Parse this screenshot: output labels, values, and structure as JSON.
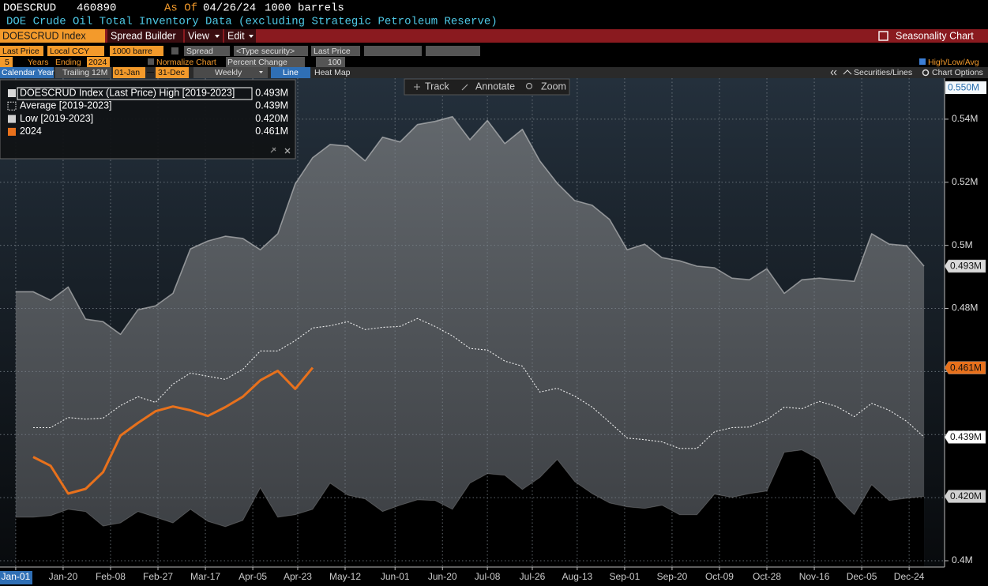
{
  "ui": {
    "symbol": "DOESCRUD",
    "code": "460890",
    "as_of_label": "As Of",
    "as_of": "04/26/24",
    "units": "1000 barrels",
    "description": "DOE Crude Oil Total Inventory Data (excluding Strategic Petroleum Reserve)",
    "menu": [
      "DOESCRUD Index",
      "Spread Builder",
      "View",
      "Edit"
    ],
    "function": "Seasonality Chart",
    "controls_1": [
      "Last Price",
      "Local CCY",
      "1000 barre",
      "Spread",
      "<Type security>",
      "Last Price"
    ],
    "controls_2": [
      "5",
      "Years",
      "Ending",
      "2024",
      "Normalize Chart",
      "Percent Change",
      "100",
      "High/Low/Avg"
    ],
    "controls_3": [
      "Calendar Year",
      "Trailing 12M",
      "01-Jan",
      "31-Dec",
      "Weekly",
      "Line",
      "Heat Map",
      "Securities/Lines",
      "Chart Options"
    ],
    "chart_tools": [
      "Track",
      "Annotate",
      "Zoom"
    ]
  },
  "chart_data": {
    "type": "line",
    "x": [
      0,
      7,
      14,
      21,
      28,
      35,
      42,
      49,
      56,
      63,
      70,
      77,
      84,
      91,
      98,
      105,
      112,
      119,
      126,
      133,
      140,
      147,
      154,
      161,
      168,
      175,
      182,
      189,
      196,
      203,
      210,
      217,
      224,
      231,
      238,
      245,
      252,
      259,
      266,
      273,
      280,
      287,
      294,
      301,
      308,
      315,
      322,
      329,
      336,
      343,
      350,
      357,
      364
    ],
    "xlim": [
      -6.3,
      372.2
    ],
    "xticks": [
      {
        "value": 0,
        "label": "Jan-01"
      },
      {
        "value": 19,
        "label": "Jan-20"
      },
      {
        "value": 38,
        "label": "Feb-08"
      },
      {
        "value": 57,
        "label": "Feb-27"
      },
      {
        "value": 76,
        "label": "Mar-17"
      },
      {
        "value": 95,
        "label": "Apr-05"
      },
      {
        "value": 113,
        "label": "Apr-23"
      },
      {
        "value": 132,
        "label": "May-12"
      },
      {
        "value": 152,
        "label": "Jun-01"
      },
      {
        "value": 171,
        "label": "Jun-20"
      },
      {
        "value": 189,
        "label": "Jul-08"
      },
      {
        "value": 207,
        "label": "Jul-26"
      },
      {
        "value": 225,
        "label": "Aug-13"
      },
      {
        "value": 244,
        "label": "Sep-01"
      },
      {
        "value": 263,
        "label": "Sep-20"
      },
      {
        "value": 282,
        "label": "Oct-09"
      },
      {
        "value": 301,
        "label": "Oct-28"
      },
      {
        "value": 320,
        "label": "Nov-16"
      },
      {
        "value": 339,
        "label": "Dec-05"
      },
      {
        "value": 358,
        "label": "Dec-24"
      }
    ],
    "ylim": [
      0.398,
      0.553
    ],
    "yticks": [
      {
        "value": 0.4,
        "label": "0.4M"
      },
      {
        "value": 0.42,
        "label": "0.42M"
      },
      {
        "value": 0.44,
        "label": "0.44M"
      },
      {
        "value": 0.46,
        "label": "0.46M"
      },
      {
        "value": 0.48,
        "label": "0.48M"
      },
      {
        "value": 0.5,
        "label": "0.5M"
      },
      {
        "value": 0.52,
        "label": "0.52M"
      },
      {
        "value": 0.54,
        "label": "0.54M"
      }
    ],
    "top_label": {
      "value": 0.55,
      "label": "0.550M"
    },
    "grid": true,
    "legend": "upper left",
    "series": [
      {
        "name": "DOESCRUD Index (Last Price) High [2019-2023]",
        "color": "#d9d9d9",
        "style": "solid",
        "values": [
          0.4853,
          0.4853,
          0.4826,
          0.4868,
          0.4766,
          0.4758,
          0.4718,
          0.4796,
          0.4808,
          0.4848,
          0.4989,
          0.5014,
          0.5029,
          0.5022,
          0.4986,
          0.5037,
          0.5195,
          0.5278,
          0.532,
          0.5315,
          0.5268,
          0.5343,
          0.5328,
          0.5383,
          0.5393,
          0.5408,
          0.5335,
          0.5396,
          0.5323,
          0.5368,
          0.5268,
          0.5197,
          0.5142,
          0.5127,
          0.5082,
          0.4986,
          0.5004,
          0.4961,
          0.4951,
          0.4934,
          0.4929,
          0.4896,
          0.4891,
          0.4926,
          0.4848,
          0.4891,
          0.4896,
          0.4891,
          0.4886,
          0.5037,
          0.5004,
          0.4999,
          0.4934
        ],
        "value_labels": [
          null,
          null,
          null,
          null,
          null,
          null,
          null,
          null,
          null,
          null,
          null,
          null,
          null,
          null,
          null,
          null,
          null,
          null,
          null,
          null,
          null,
          null,
          null,
          null,
          null,
          null,
          null,
          null,
          null,
          null,
          null,
          null,
          null,
          null,
          null,
          null,
          null,
          null,
          null,
          null,
          null,
          null,
          null,
          null,
          null,
          null,
          null,
          null,
          null,
          null,
          null,
          null,
          "0.493M"
        ]
      },
      {
        "name": "Average  [2019-2023]",
        "color": "#ffffff",
        "style": "dotted",
        "values": [
          null,
          0.4422,
          0.4422,
          0.4454,
          0.4449,
          0.4452,
          0.4492,
          0.452,
          0.4502,
          0.456,
          0.4595,
          0.4585,
          0.4575,
          0.4607,
          0.4665,
          0.4665,
          0.4698,
          0.4738,
          0.4745,
          0.4758,
          0.4733,
          0.474,
          0.4743,
          0.4768,
          0.4743,
          0.4713,
          0.4673,
          0.4668,
          0.4633,
          0.4617,
          0.4535,
          0.4547,
          0.4522,
          0.4487,
          0.4439,
          0.4389,
          0.4384,
          0.4377,
          0.4356,
          0.4356,
          0.4409,
          0.4422,
          0.4424,
          0.4447,
          0.4487,
          0.4482,
          0.4505,
          0.4489,
          0.4457,
          0.4499,
          0.4477,
          0.4442,
          0.4392
        ],
        "value_labels": [
          null,
          null,
          null,
          null,
          null,
          null,
          null,
          null,
          null,
          null,
          null,
          null,
          null,
          null,
          null,
          null,
          null,
          null,
          null,
          null,
          null,
          null,
          null,
          null,
          null,
          null,
          null,
          null,
          null,
          null,
          null,
          null,
          null,
          null,
          null,
          null,
          null,
          null,
          null,
          null,
          null,
          null,
          null,
          null,
          null,
          null,
          null,
          null,
          null,
          null,
          null,
          null,
          "0.439M"
        ]
      },
      {
        "name": "Low  [2019-2023]",
        "color": "#d0d0d0",
        "style": "solid",
        "values": [
          0.4138,
          0.4138,
          0.4143,
          0.4163,
          0.4156,
          0.411,
          0.412,
          0.4156,
          0.4138,
          0.412,
          0.4163,
          0.4125,
          0.4108,
          0.4128,
          0.4231,
          0.4138,
          0.4146,
          0.4163,
          0.4246,
          0.4208,
          0.4196,
          0.4156,
          0.4176,
          0.4193,
          0.4191,
          0.4163,
          0.4246,
          0.4276,
          0.4271,
          0.4226,
          0.4264,
          0.4321,
          0.4251,
          0.4213,
          0.4183,
          0.4171,
          0.4166,
          0.4176,
          0.4146,
          0.4146,
          0.4211,
          0.4201,
          0.4213,
          0.4221,
          0.4344,
          0.4351,
          0.4321,
          0.4201,
          0.4146,
          0.4241,
          0.4191,
          0.4198,
          0.4204
        ],
        "value_labels": [
          null,
          null,
          null,
          null,
          null,
          null,
          null,
          null,
          null,
          null,
          null,
          null,
          null,
          null,
          null,
          null,
          null,
          null,
          null,
          null,
          null,
          null,
          null,
          null,
          null,
          null,
          null,
          null,
          null,
          null,
          null,
          null,
          null,
          null,
          null,
          null,
          null,
          null,
          null,
          null,
          null,
          null,
          null,
          null,
          null,
          null,
          null,
          null,
          null,
          null,
          null,
          null,
          "0.420M"
        ]
      },
      {
        "name": "2024",
        "color": "#e8711c",
        "style": "solid",
        "values": [
          null,
          0.4329,
          0.4301,
          0.4213,
          0.4228,
          0.4281,
          0.4397,
          0.4437,
          0.4474,
          0.4489,
          0.4477,
          0.4459,
          0.4487,
          0.452,
          0.4572,
          0.4602,
          0.4545,
          0.4612,
          null,
          null,
          null,
          null,
          null,
          null,
          null,
          null,
          null,
          null,
          null,
          null,
          null,
          null,
          null,
          null,
          null,
          null,
          null,
          null,
          null,
          null,
          null,
          null,
          null,
          null,
          null,
          null,
          null,
          null,
          null,
          null,
          null,
          null,
          null
        ],
        "value_labels": [
          null,
          null,
          null,
          null,
          null,
          null,
          null,
          null,
          null,
          null,
          null,
          null,
          null,
          null,
          null,
          null,
          null,
          "0.461M",
          null,
          null,
          null,
          null,
          null,
          null,
          null,
          null,
          null,
          null,
          null,
          null,
          null,
          null,
          null,
          null,
          null,
          null,
          null,
          null,
          null,
          null,
          null,
          null,
          null,
          null,
          null,
          null,
          null,
          null,
          null,
          null,
          null,
          null,
          null
        ]
      }
    ]
  }
}
